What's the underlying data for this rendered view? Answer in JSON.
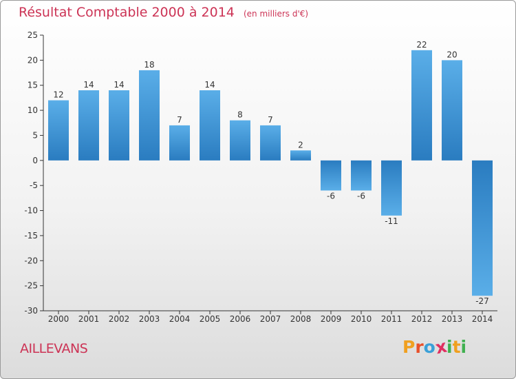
{
  "chart_data": {
    "type": "bar",
    "title": "Résultat Comptable 2000 à 2014",
    "subtitle": "(en milliers d'€)",
    "categories": [
      "2000",
      "2001",
      "2002",
      "2003",
      "2004",
      "2005",
      "2006",
      "2007",
      "2008",
      "2009",
      "2010",
      "2011",
      "2012",
      "2013",
      "2014"
    ],
    "values": [
      12,
      14,
      14,
      18,
      7,
      14,
      8,
      7,
      2,
      -6,
      -6,
      -11,
      22,
      20,
      -27
    ],
    "data_labels": [
      "12",
      "14",
      "14",
      "18",
      "7",
      "14",
      "8",
      "7",
      "2",
      "-6",
      "-6",
      "-11",
      "22",
      "20",
      "-27"
    ],
    "ylim": [
      -30,
      25
    ],
    "yticks": [
      25,
      20,
      15,
      10,
      5,
      0,
      -5,
      -10,
      -15,
      -20,
      -25,
      -30
    ],
    "grid": false,
    "bar_color_light": "#5aaee8",
    "bar_color_dark": "#2a7cc0"
  },
  "footer": {
    "commune": "AILLEVANS",
    "logo_letters": [
      "P",
      "r",
      "o",
      "x",
      "i",
      "t",
      "i"
    ],
    "logo_colors": [
      "#f0a020",
      "#e8502a",
      "#3aa0d8",
      "#e03060",
      "#40b050",
      "#f0a020",
      "#40b050"
    ]
  },
  "colors": {
    "title": "#cc3355",
    "axis": "#333333"
  }
}
